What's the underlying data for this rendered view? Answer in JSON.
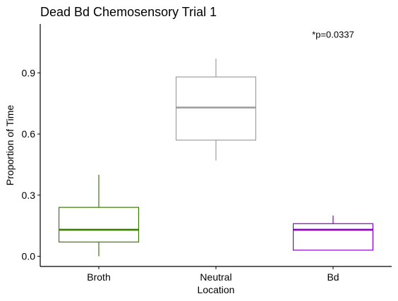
{
  "chart_data": {
    "type": "box",
    "title": "Dead Bd Chemosensory Trial 1",
    "xlabel": "Location",
    "ylabel": "Proportion of Time",
    "ylim": [
      -0.05,
      1.14
    ],
    "yticks": [
      0.0,
      0.3,
      0.6,
      0.9
    ],
    "ytick_labels": [
      "0.0",
      "0.3",
      "0.6",
      "0.9"
    ],
    "categories": [
      "Broth",
      "Neutral",
      "Bd"
    ],
    "boxes": [
      {
        "name": "Broth",
        "color": "#3a7d00",
        "min": 0.0,
        "q1": 0.07,
        "median": 0.13,
        "q3": 0.24,
        "max": 0.4
      },
      {
        "name": "Neutral",
        "color": "#9e9e9e",
        "min": 0.47,
        "q1": 0.57,
        "median": 0.73,
        "q3": 0.88,
        "max": 0.97
      },
      {
        "name": "Bd",
        "color": "#8b00c9",
        "min": 0.03,
        "q1": 0.03,
        "median": 0.13,
        "q3": 0.16,
        "max": 0.2
      }
    ],
    "annotation": {
      "text": "*p=0.0337",
      "x": "Bd",
      "y": 1.09
    },
    "grid": false,
    "legend": "none"
  }
}
